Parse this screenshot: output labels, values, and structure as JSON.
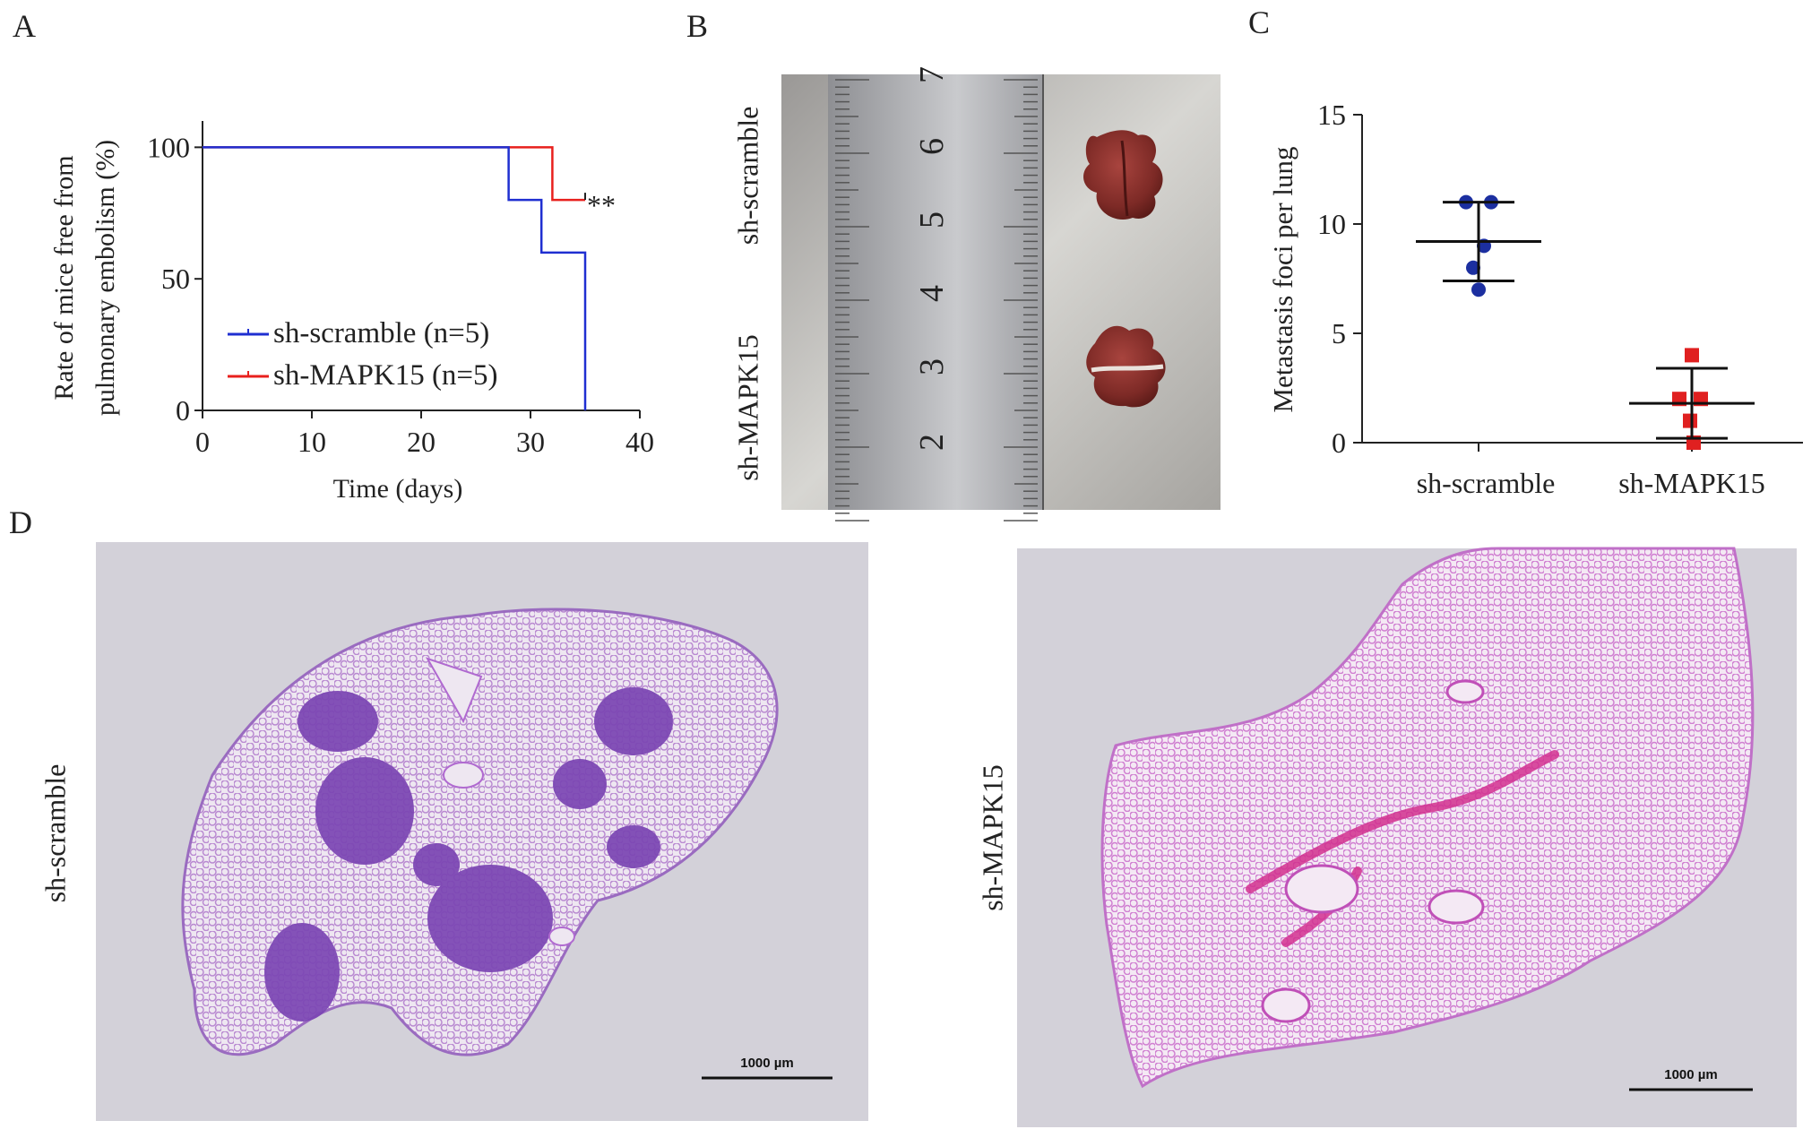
{
  "panel_labels": {
    "a": "A",
    "b": "B",
    "c": "C",
    "d": "D"
  },
  "panel_b": {
    "row_labels": [
      "sh-scramble",
      "sh-MAPK15"
    ],
    "ruler_numbers": [
      "7",
      "6",
      "5",
      "4",
      "3",
      "2"
    ]
  },
  "panel_d": {
    "left_label": "sh-scramble",
    "right_label": "sh-MAPK15",
    "scale_bar_label": "1000 µm",
    "tissue_colors": {
      "background": "#d3d1d9",
      "tumor": "#7b45b3",
      "alveoli_left": "#b98ad1",
      "alveoli_right": "#d07fd1",
      "vessel": "#d2308f"
    }
  },
  "chart_data": [
    {
      "type": "line",
      "subtype": "kaplan-meier",
      "title": "",
      "xlabel": "Time (days)",
      "ylabel_lines": [
        "Rate of mice free from",
        "pulmonary embolism (%)"
      ],
      "xlim": [
        0,
        40
      ],
      "ylim": [
        0,
        110
      ],
      "xticks": [
        0,
        10,
        20,
        30,
        40
      ],
      "yticks": [
        0,
        50,
        100
      ],
      "annotation": "**",
      "legend_position": "lower-left",
      "series": [
        {
          "name": "sh-scramble (n=5)",
          "color": "#1f2fd1",
          "x": [
            0,
            28,
            28,
            31,
            31,
            35,
            35
          ],
          "y": [
            100,
            100,
            80,
            80,
            60,
            60,
            0
          ]
        },
        {
          "name": "sh-MAPK15 (n=5)",
          "color": "#e8201d",
          "x": [
            0,
            32,
            32,
            35
          ],
          "y": [
            100,
            100,
            80,
            80
          ]
        }
      ]
    },
    {
      "type": "scatter",
      "subtype": "dot-plot-mean-sd",
      "title": "",
      "xlabel": "",
      "ylabel": "Metastasis foci per lung",
      "ylim": [
        0,
        15
      ],
      "yticks": [
        0,
        5,
        10,
        15
      ],
      "categories": [
        "sh-scramble",
        "sh-MAPK15"
      ],
      "series": [
        {
          "name": "sh-scramble",
          "color": "#1c2fa0",
          "marker": "circle",
          "values": [
            11,
            11,
            9,
            8,
            7
          ],
          "mean": 9.2,
          "sd_low": 7.4,
          "sd_high": 11.0
        },
        {
          "name": "sh-MAPK15",
          "color": "#e02020",
          "marker": "square",
          "values": [
            4,
            2,
            2,
            0,
            1
          ],
          "mean": 1.8,
          "sd_low": 0.2,
          "sd_high": 3.4
        }
      ]
    }
  ]
}
